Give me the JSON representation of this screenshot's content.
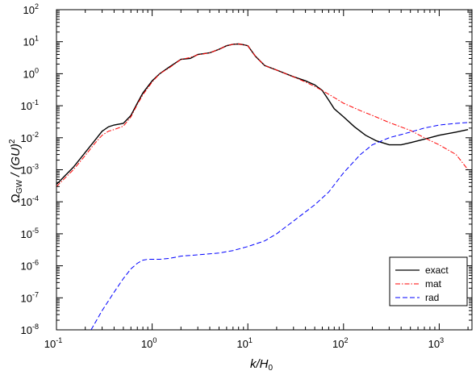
{
  "chart_data": {
    "type": "line",
    "xscale": "log",
    "yscale": "log",
    "xlim": [
      0.1,
      2200
    ],
    "ylim": [
      1e-08,
      100
    ],
    "x_tick_exponents": [
      "-1",
      "0",
      "1",
      "2",
      "3"
    ],
    "y_tick_exponents": [
      "-8",
      "-7",
      "-6",
      "-5",
      "-4",
      "-3",
      "-2",
      "-1",
      "0",
      "1",
      "2"
    ],
    "tick_base": "10",
    "xlabel": "k/H",
    "xlabel_sub": "0",
    "ylabel_main": "Ω",
    "ylabel_sub": "GW",
    "ylabel_rest": " / (GU)",
    "ylabel_sup": "2",
    "legend_position": "bottom-right",
    "series": [
      {
        "name": "exact",
        "color": "#000000",
        "dash": "solid",
        "x": [
          0.1,
          0.15,
          0.2,
          0.25,
          0.3,
          0.35,
          0.4,
          0.5,
          0.6,
          0.7,
          0.8,
          1.0,
          1.2,
          1.5,
          2.0,
          2.5,
          3.0,
          4.0,
          5.0,
          6.0,
          7.0,
          8.0,
          9.0,
          10,
          12,
          15,
          20,
          30,
          40,
          50,
          60,
          70,
          80,
          100,
          130,
          170,
          220,
          300,
          400,
          500,
          700,
          1000,
          1500,
          2000
        ],
        "y": [
          0.00035,
          0.0012,
          0.0035,
          0.008,
          0.016,
          0.022,
          0.025,
          0.028,
          0.05,
          0.12,
          0.25,
          0.6,
          1.0,
          1.6,
          2.8,
          3.0,
          4.0,
          4.5,
          5.8,
          7.5,
          8.3,
          8.5,
          8.0,
          7.5,
          3.5,
          1.8,
          1.3,
          0.8,
          0.6,
          0.45,
          0.3,
          0.15,
          0.08,
          0.045,
          0.022,
          0.012,
          0.008,
          0.006,
          0.006,
          0.007,
          0.009,
          0.012,
          0.015,
          0.018
        ]
      },
      {
        "name": "mat",
        "color": "#ff0000",
        "dash": "dash-dot",
        "x": [
          0.1,
          0.15,
          0.2,
          0.25,
          0.3,
          0.35,
          0.4,
          0.5,
          0.6,
          0.7,
          0.8,
          1.0,
          1.2,
          1.5,
          2.0,
          2.5,
          3.0,
          4.0,
          5.0,
          6.0,
          7.0,
          8.0,
          9.0,
          10,
          12,
          15,
          20,
          30,
          40,
          50,
          60,
          80,
          100,
          150,
          200,
          300,
          500,
          700,
          1000,
          1500,
          2000
        ],
        "y": [
          0.0003,
          0.001,
          0.0028,
          0.0065,
          0.012,
          0.016,
          0.018,
          0.023,
          0.045,
          0.11,
          0.22,
          0.55,
          1.0,
          1.5,
          2.8,
          3.2,
          3.9,
          4.5,
          5.8,
          7.5,
          8.3,
          8.5,
          8.0,
          7.5,
          3.5,
          1.8,
          1.3,
          0.8,
          0.55,
          0.4,
          0.3,
          0.18,
          0.12,
          0.07,
          0.05,
          0.03,
          0.017,
          0.01,
          0.006,
          0.003,
          0.001
        ]
      },
      {
        "name": "rad",
        "color": "#0000ff",
        "dash": "dashed",
        "x": [
          0.23,
          0.3,
          0.4,
          0.5,
          0.6,
          0.7,
          0.8,
          0.9,
          1.0,
          1.2,
          1.5,
          2.0,
          3.0,
          5.0,
          7.0,
          10,
          15,
          20,
          30,
          50,
          70,
          100,
          150,
          200,
          300,
          500,
          700,
          1000,
          1500,
          2000
        ],
        "y": [
          1e-08,
          4e-08,
          1.5e-07,
          4e-07,
          8e-07,
          1.2e-06,
          1.5e-06,
          1.6e-06,
          1.6e-06,
          1.6e-06,
          1.7e-06,
          2e-06,
          2.2e-06,
          2.5e-06,
          3e-06,
          4e-06,
          6e-06,
          1e-05,
          2.5e-05,
          8e-05,
          0.0002,
          0.0008,
          0.003,
          0.006,
          0.01,
          0.015,
          0.02,
          0.025,
          0.028,
          0.03
        ]
      }
    ]
  }
}
